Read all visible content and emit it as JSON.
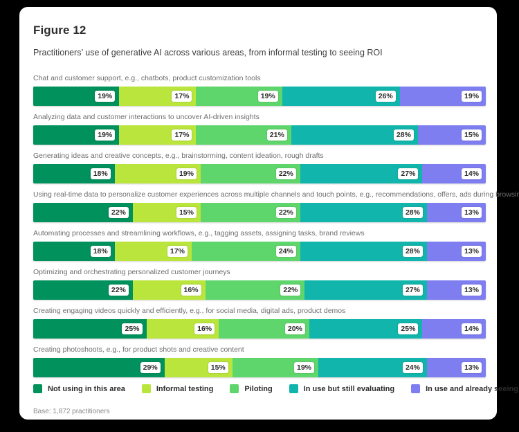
{
  "card": {
    "title": "Figure 12",
    "subtitle": "Practitioners’ use of generative AI across various areas, from informal testing to seeing ROI",
    "base_note": "Base: 1,872 practitioners"
  },
  "chart_data": {
    "type": "bar",
    "variant": "horizontal-stacked",
    "title": "Figure 12",
    "subtitle": "Practitioners’ use of generative AI across various areas, from informal testing to seeing ROI",
    "value_unit": "percent",
    "xlim": [
      0,
      100
    ],
    "legend_position": "bottom",
    "base_note": "Base: 1,872 practitioners",
    "categories": [
      "Chat and customer support, e.g., chatbots, product customization tools",
      "Analyzing data and customer interactions to uncover AI-driven insights",
      "Generating ideas and creative concepts, e.g., brainstorming, content ideation, rough drafts",
      "Using real-time data to personalize customer experiences across multiple channels and touch points, e.g., recommendations, offers, ads during browsing",
      "Automating processes and streamlining workflows, e.g., tagging assets, assigning tasks, brand reviews",
      "Optimizing and orchestrating personalized customer journeys",
      "Creating engaging videos quickly and efficiently, e.g., for social media, digital ads, product demos",
      "Creating photoshoots, e.g., for product shots and creative content"
    ],
    "series": [
      {
        "name": "Not using in this area",
        "color": "#00915c",
        "values": [
          19,
          19,
          18,
          22,
          18,
          22,
          25,
          29
        ]
      },
      {
        "name": "Informal testing",
        "color": "#bae53c",
        "values": [
          17,
          17,
          19,
          15,
          17,
          16,
          16,
          15
        ]
      },
      {
        "name": "Piloting",
        "color": "#5fd66c",
        "values": [
          19,
          21,
          22,
          22,
          24,
          22,
          20,
          19
        ]
      },
      {
        "name": "In use but still evaluating",
        "color": "#12b5ab",
        "values": [
          26,
          28,
          27,
          28,
          28,
          27,
          25,
          24
        ]
      },
      {
        "name": "In use and already seeing ROI",
        "color": "#7e7ef1",
        "values": [
          19,
          15,
          14,
          13,
          13,
          13,
          14,
          13
        ]
      }
    ]
  }
}
